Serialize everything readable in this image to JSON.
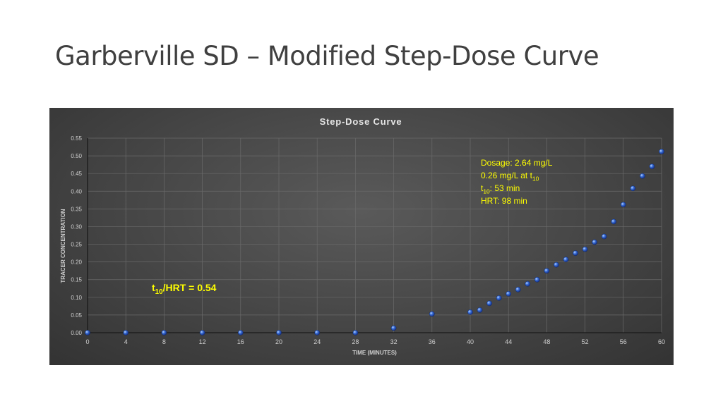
{
  "slide": {
    "title": "Garberville SD – Modified Step-Dose Curve"
  },
  "annotations": {
    "dosage_lines": [
      {
        "main": "Dosage: 2.64 mg/L",
        "sub": "",
        "rest": ""
      },
      {
        "main": "0.26 mg/L at t",
        "sub": "10",
        "rest": ""
      },
      {
        "main": "t",
        "sub": "10",
        "rest": ": 53 min"
      },
      {
        "main": "HRT: 98 min",
        "sub": "",
        "rest": ""
      }
    ],
    "ratio": {
      "main": "t",
      "sub": "10",
      "rest": "/HRT = 0.54"
    },
    "dosage_color": "#ffff00",
    "ratio_color": "#ffff00"
  },
  "chart_data": {
    "type": "scatter",
    "title": "Step-Dose Curve",
    "xlabel": "TIME (MINUTES)",
    "ylabel": "TRACER CONCENTRATION",
    "xlim": [
      0,
      60
    ],
    "ylim": [
      0,
      0.55
    ],
    "x_ticks": [
      "0",
      "4",
      "8",
      "12",
      "16",
      "20",
      "24",
      "28",
      "32",
      "36",
      "40",
      "44",
      "48",
      "52",
      "56",
      "60"
    ],
    "y_ticks": [
      "0.00",
      "0.05",
      "0.10",
      "0.15",
      "0.20",
      "0.25",
      "0.30",
      "0.35",
      "0.40",
      "0.45",
      "0.50",
      "0.55"
    ],
    "grid": true,
    "marker_color": "#3a6fd8",
    "series": [
      {
        "x": [
          0,
          4,
          8,
          12,
          16,
          20,
          24,
          28,
          32,
          36,
          40,
          41,
          42,
          43,
          44,
          45,
          46,
          47,
          48,
          49,
          50,
          51,
          52,
          53,
          54,
          55,
          56,
          57,
          58,
          59,
          60
        ],
        "y": [
          0.0,
          0.0,
          0.0,
          0.0,
          0.0,
          0.0,
          0.0,
          0.0,
          0.013,
          0.053,
          0.058,
          0.064,
          0.083,
          0.098,
          0.11,
          0.122,
          0.138,
          0.15,
          0.175,
          0.192,
          0.207,
          0.225,
          0.236,
          0.256,
          0.272,
          0.314,
          0.362,
          0.408,
          0.443,
          0.47,
          0.512
        ]
      }
    ]
  }
}
